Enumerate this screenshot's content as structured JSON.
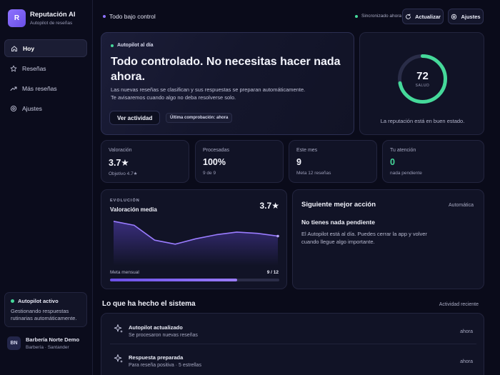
{
  "brand": {
    "logo_letter": "R",
    "title": "Reputación AI",
    "subtitle": "Autopilot de reseñas"
  },
  "nav": {
    "items": [
      {
        "label": "Hoy",
        "icon": "home-icon",
        "active": true
      },
      {
        "label": "Reseñas",
        "icon": "star-icon"
      },
      {
        "label": "Más reseñas",
        "icon": "trending-up-icon"
      },
      {
        "label": "Ajustes",
        "icon": "gear-icon"
      }
    ]
  },
  "autopilot": {
    "title": "Autopilot activo",
    "text": "Gestionando respuestas rutinarias automáticamente.",
    "status_color": "#45d99a"
  },
  "user": {
    "initials": "BN",
    "name": "Barbería Norte Demo",
    "subtitle": "Barbería · Santander"
  },
  "topbar": {
    "title": "Todo bajo control",
    "sync_status": "Sincronizado ahora",
    "refresh_label": "Actualizar",
    "settings_label": "Ajustes"
  },
  "hero": {
    "status": "Autopilot al día",
    "title": "Todo controlado. No necesitas hacer nada ahora.",
    "desc_line1": "Las nuevas reseñas se clasifican y sus respuestas se preparan automáticamente.",
    "desc_line2": "Te avisaremos cuando algo no deba resolverse solo.",
    "button_label": "Ver actividad",
    "chip_label": "Última comprobación: ahora"
  },
  "health": {
    "value": "72",
    "score": 72,
    "max": 100,
    "label": "SALUD",
    "caption": "La reputación está en buen estado.",
    "color": "#45d99a"
  },
  "stats": [
    {
      "label": "Valoración",
      "value": "3.7★",
      "sub": "Objetivo 4.7★"
    },
    {
      "label": "Procesadas",
      "value": "100%",
      "sub": "9 de 9"
    },
    {
      "label": "Este mes",
      "value": "9",
      "sub": "Meta 12 reseñas"
    },
    {
      "label": "Tu atención",
      "value": "0",
      "sub": "nada pendiente"
    }
  ],
  "evolution": {
    "kicker": "EVOLUCIÓN",
    "title": "Valoración media",
    "value": "3.7★",
    "meta_label": "Meta mensual",
    "meta_value": "9 / 12",
    "meta_progress": 0.75
  },
  "chart_data": {
    "type": "area",
    "title": "Valoración media",
    "x": [
      1,
      2,
      3,
      4,
      5,
      6,
      7,
      8,
      9
    ],
    "series": [
      {
        "values": [
          4.8,
          4.5,
          3.4,
          3.1,
          3.5,
          3.8,
          4.0,
          3.9,
          3.7
        ]
      }
    ],
    "ylim": [
      1.5,
      5
    ],
    "grid": false
  },
  "next_action": {
    "title": "Siguiente mejor acción",
    "tag": "Automática",
    "heading": "No tienes nada pendiente",
    "text": "El Autopilot está al día. Puedes cerrar la app y volver cuando llegue algo importante."
  },
  "activity": {
    "title": "Lo que ha hecho el sistema",
    "tag": "Actividad reciente",
    "items": [
      {
        "title": "Autopilot actualizado",
        "sub": "Se procesaron nuevas reseñas",
        "time": "ahora",
        "icon": "sparkle-icon"
      },
      {
        "title": "Respuesta preparada",
        "sub": "Para reseña positiva · 5 estrellas",
        "time": "ahora",
        "icon": "sparkle-icon"
      }
    ]
  },
  "colors": {
    "accent": "#8e73ff",
    "success": "#45d99a",
    "background": "#0a0b1a"
  }
}
